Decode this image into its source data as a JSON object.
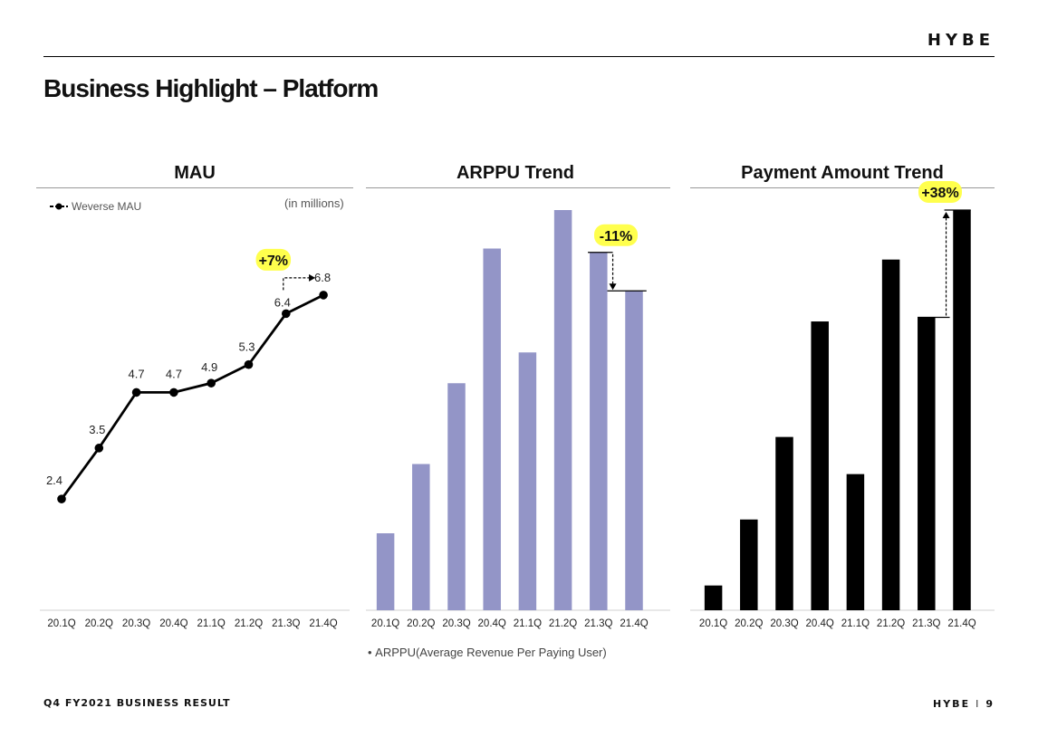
{
  "header": {
    "logo": "HYBE",
    "title": "Business Highlight – Platform"
  },
  "footer": {
    "left": "Q4 FY2021 BUSINESS RESULT",
    "logo": "HYBE",
    "sep": "I",
    "page": "9"
  },
  "colors": {
    "line": "#000000",
    "arppu_bar": "#9395c7",
    "payment_bar": "#000000",
    "highlight": "#ffff4d"
  },
  "icons": {
    "legend": "line-dot-marker-icon",
    "arrow": "dashed-arrow-icon"
  },
  "chart_data": [
    {
      "type": "line",
      "title": "MAU",
      "unit_label": "(in millions)",
      "categories": [
        "20.1Q",
        "20.2Q",
        "20.3Q",
        "20.4Q",
        "21.1Q",
        "21.2Q",
        "21.3Q",
        "21.4Q"
      ],
      "series": [
        {
          "name": "Weverse MAU",
          "values": [
            2.4,
            3.5,
            4.7,
            4.7,
            4.9,
            5.3,
            6.4,
            6.8
          ]
        }
      ],
      "value_labels": [
        "2.4",
        "3.5",
        "4.7",
        "4.7",
        "4.9",
        "5.3",
        "6.4",
        "6.8"
      ],
      "ylim": [
        0,
        8.4
      ],
      "annotation": "+7%"
    },
    {
      "type": "bar",
      "title": "ARPPU Trend",
      "categories": [
        "20.1Q",
        "20.2Q",
        "20.3Q",
        "20.4Q",
        "21.1Q",
        "21.2Q",
        "21.3Q",
        "21.4Q"
      ],
      "values": [
        20,
        38,
        59,
        94,
        67,
        104,
        93,
        83
      ],
      "ylim": [
        0,
        104
      ],
      "annotation": "-11%",
      "footnote": "ARPPU(Average Revenue Per Paying User)"
    },
    {
      "type": "bar",
      "title": "Payment Amount Trend",
      "categories": [
        "20.1Q",
        "20.2Q",
        "20.3Q",
        "20.4Q",
        "21.1Q",
        "21.2Q",
        "21.3Q",
        "21.4Q"
      ],
      "values": [
        6,
        22,
        42,
        70,
        33,
        85,
        71,
        97
      ],
      "ylim": [
        0,
        97
      ],
      "annotation": "+38%"
    }
  ]
}
